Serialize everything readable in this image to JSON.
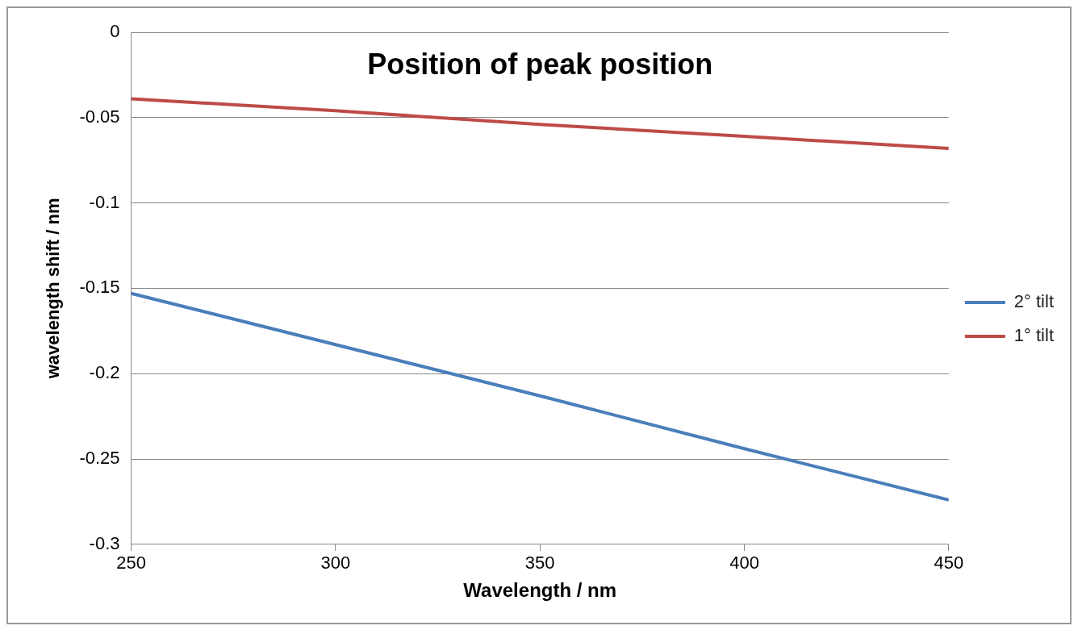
{
  "chart_data": {
    "type": "line",
    "title": "Position of peak position",
    "xlabel": "Wavelength / nm",
    "ylabel": "wavelength shift / nm",
    "x": [
      250,
      300,
      350,
      400,
      450
    ],
    "series": [
      {
        "name": "2° tilt",
        "color": "#4a7ebb",
        "values": [
          -0.153,
          -0.183,
          -0.213,
          -0.244,
          -0.274
        ]
      },
      {
        "name": "1° tilt",
        "color": "#be4b48",
        "values": [
          -0.039,
          -0.046,
          -0.054,
          -0.061,
          -0.068
        ]
      }
    ],
    "xlim": [
      250,
      450
    ],
    "xticks": [
      250,
      300,
      350,
      400,
      450
    ],
    "ylim": [
      -0.3,
      0
    ],
    "yticks": [
      -0.3,
      -0.25,
      -0.2,
      -0.15,
      -0.1,
      -0.05,
      0
    ],
    "grid": "y",
    "legend": "right",
    "marker": "none",
    "line_style": "solid"
  }
}
